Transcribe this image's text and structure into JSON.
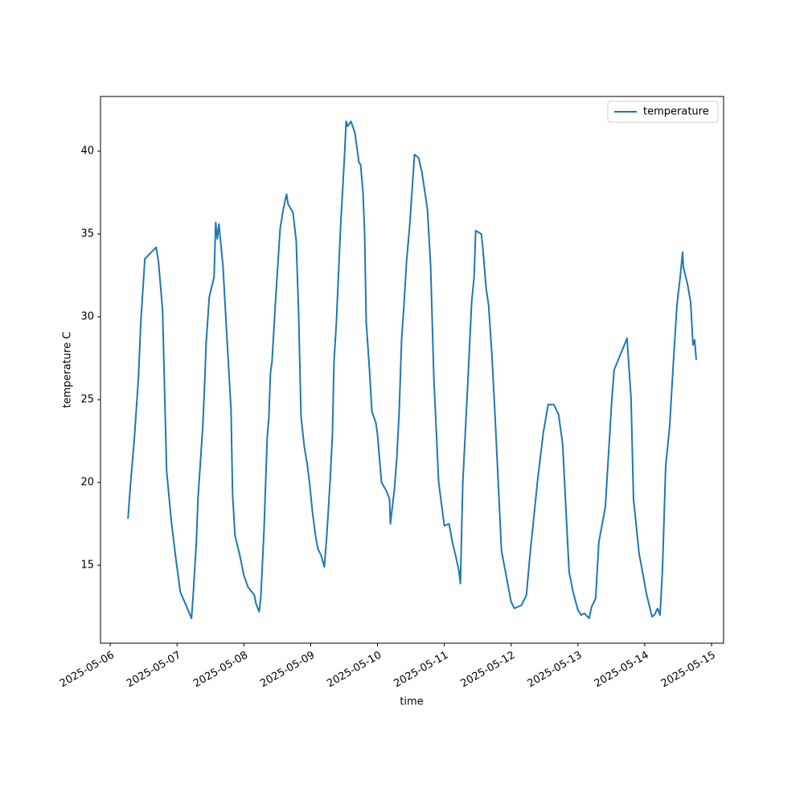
{
  "chart_data": {
    "type": "line",
    "xlabel": "time",
    "ylabel": "temperature C",
    "legend": "upper right",
    "xlim": [
      "2025-05-05T20:30",
      "2025-05-15T04:20"
    ],
    "xticks": [
      "2025-05-06",
      "2025-05-07",
      "2025-05-08",
      "2025-05-09",
      "2025-05-10",
      "2025-05-11",
      "2025-05-12",
      "2025-05-13",
      "2025-05-14",
      "2025-05-15"
    ],
    "ylim": [
      10.3,
      43.3
    ],
    "yticks": [
      15,
      20,
      25,
      30,
      35,
      40
    ],
    "grid": false,
    "x": [
      "2025-05-06T06:22",
      "2025-05-06T07:14",
      "2025-05-06T08:41",
      "2025-05-06T10:07",
      "2025-05-06T10:59",
      "2025-05-06T12:26",
      "2025-05-06T16:29",
      "2025-05-06T17:21",
      "2025-05-06T18:48",
      "2025-05-06T20:15",
      "2025-05-06T21:59",
      "2025-05-06T23:25",
      "2025-05-07T01:09",
      "2025-05-07T03:28",
      "2025-05-07T05:12",
      "2025-05-07T05:47",
      "2025-05-07T06:56",
      "2025-05-07T07:31",
      "2025-05-07T09:15",
      "2025-05-07T10:07",
      "2025-05-07T10:25",
      "2025-05-07T11:34",
      "2025-05-07T13:18",
      "2025-05-07T13:53",
      "2025-05-07T14:28",
      "2025-05-07T15:02",
      "2025-05-07T16:29",
      "2025-05-07T17:56",
      "2025-05-07T19:23",
      "2025-05-07T19:57",
      "2025-05-07T20:49",
      "2025-05-07T22:33",
      "2025-05-08T00:00",
      "2025-05-08T01:27",
      "2025-05-08T03:46",
      "2025-05-08T04:20",
      "2025-05-08T05:30",
      "2025-05-08T06:04",
      "2025-05-08T07:14",
      "2025-05-08T08:23",
      "2025-05-08T08:58",
      "2025-05-08T09:33",
      "2025-05-08T10:07",
      "2025-05-08T11:17",
      "2025-05-08T13:01",
      "2025-05-08T14:10",
      "2025-05-08T15:20",
      "2025-05-08T15:54",
      "2025-05-08T17:38",
      "2025-05-08T18:48",
      "2025-05-08T19:40",
      "2025-05-08T20:32",
      "2025-05-08T21:41",
      "2025-05-08T22:51",
      "2025-05-08T23:43",
      "2025-05-09T00:35",
      "2025-05-09T01:44",
      "2025-05-09T02:36",
      "2025-05-09T03:46",
      "2025-05-09T04:55",
      "2025-05-09T05:47",
      "2025-05-09T06:57",
      "2025-05-09T07:49",
      "2025-05-09T08:23",
      "2025-05-09T09:15",
      "2025-05-09T10:42",
      "2025-05-09T12:09",
      "2025-05-09T12:44",
      "2025-05-09T13:18",
      "2025-05-09T14:28",
      "2025-05-09T15:54",
      "2025-05-09T17:21",
      "2025-05-09T17:56",
      "2025-05-09T18:48",
      "2025-05-09T19:23",
      "2025-05-09T19:57",
      "2025-05-09T21:07",
      "2025-05-09T21:59",
      "2025-05-09T23:26",
      "2025-05-10T00:00",
      "2025-05-10T01:27",
      "2025-05-10T03:11",
      "2025-05-10T04:20",
      "2025-05-10T04:38",
      "2025-05-10T06:05",
      "2025-05-10T06:57",
      "2025-05-10T07:49",
      "2025-05-10T08:41",
      "2025-05-10T09:33",
      "2025-05-10T10:25",
      "2025-05-10T11:34",
      "2025-05-10T13:18",
      "2025-05-10T14:45",
      "2025-05-10T15:54",
      "2025-05-10T17:56",
      "2025-05-10T19:05",
      "2025-05-10T20:15",
      "2025-05-10T21:59",
      "2025-05-11T00:00",
      "2025-05-11T01:44",
      "2025-05-11T02:54",
      "2025-05-11T04:03",
      "2025-05-11T05:13",
      "2025-05-11T05:47",
      "2025-05-11T06:39",
      "2025-05-11T08:23",
      "2025-05-11T09:50",
      "2025-05-11T10:42",
      "2025-05-11T11:17",
      "2025-05-11T13:18",
      "2025-05-11T13:53",
      "2025-05-11T15:02",
      "2025-05-11T15:55",
      "2025-05-11T17:04",
      "2025-05-11T18:13",
      "2025-05-11T20:32",
      "2025-05-11T21:59",
      "2025-05-12T00:00",
      "2025-05-12T01:10",
      "2025-05-12T03:46",
      "2025-05-12T05:30",
      "2025-05-12T06:39",
      "2025-05-12T09:33",
      "2025-05-12T11:34",
      "2025-05-12T13:18",
      "2025-05-12T15:20",
      "2025-05-12T17:04",
      "2025-05-12T18:31",
      "2025-05-12T19:40",
      "2025-05-12T20:50",
      "2025-05-12T22:16",
      "2025-05-13T00:00",
      "2025-05-13T01:10",
      "2025-05-13T02:19",
      "2025-05-13T04:03",
      "2025-05-13T04:55",
      "2025-05-13T06:22",
      "2025-05-13T07:31",
      "2025-05-13T08:24",
      "2025-05-13T09:50",
      "2025-05-13T12:09",
      "2025-05-13T13:01",
      "2025-05-13T17:39",
      "2025-05-13T19:05",
      "2025-05-13T19:58",
      "2025-05-13T21:59",
      "2025-05-13T23:26",
      "2025-05-14T00:35",
      "2025-05-14T01:45",
      "2025-05-14T02:37",
      "2025-05-14T03:29",
      "2025-05-14T04:38",
      "2025-05-14T05:30",
      "2025-05-14T06:22",
      "2025-05-14T07:32",
      "2025-05-14T08:58",
      "2025-05-14T10:08",
      "2025-05-14T11:34",
      "2025-05-14T12:44",
      "2025-05-14T13:36",
      "2025-05-14T13:53",
      "2025-05-14T15:20",
      "2025-05-14T16:29",
      "2025-05-14T17:21",
      "2025-05-14T17:56",
      "2025-05-14T18:31"
    ],
    "series": [
      {
        "name": "temperature",
        "color": "#1f77b4",
        "values": [
          17.8,
          19.8,
          22.7,
          26.3,
          29.7,
          33.5,
          34.2,
          33.3,
          30.4,
          20.7,
          17.6,
          15.6,
          13.4,
          12.5,
          11.8,
          13.2,
          16.4,
          19.0,
          23.4,
          26.8,
          28.3,
          31.2,
          32.4,
          35.7,
          34.7,
          35.6,
          33.1,
          28.7,
          24.4,
          19.3,
          16.8,
          15.6,
          14.4,
          13.7,
          13.2,
          12.7,
          12.2,
          13.0,
          17.1,
          22.7,
          23.9,
          26.6,
          27.3,
          30.7,
          35.3,
          36.5,
          37.4,
          36.8,
          36.3,
          34.6,
          30.2,
          24.0,
          22.2,
          21.0,
          19.8,
          18.3,
          16.8,
          16.0,
          15.6,
          14.9,
          16.8,
          20.0,
          22.9,
          27.3,
          29.7,
          35.3,
          39.7,
          41.8,
          41.5,
          41.8,
          41.1,
          39.3,
          39.2,
          37.5,
          35.0,
          29.7,
          26.8,
          24.3,
          23.6,
          22.9,
          20.0,
          19.5,
          19.0,
          17.5,
          19.6,
          21.5,
          24.4,
          28.7,
          30.8,
          33.3,
          35.5,
          39.8,
          39.6,
          38.8,
          36.5,
          33.1,
          26.3,
          20.0,
          17.4,
          17.5,
          16.4,
          15.6,
          14.7,
          13.9,
          20.0,
          25.8,
          30.9,
          32.4,
          35.2,
          35.0,
          34.1,
          31.7,
          30.7,
          27.8,
          24.1,
          15.9,
          14.6,
          12.8,
          12.4,
          12.6,
          13.2,
          15.4,
          20.2,
          23.0,
          24.7,
          24.7,
          24.1,
          22.3,
          18.5,
          14.6,
          13.4,
          12.3,
          12.0,
          12.1,
          11.8,
          12.5,
          13.0,
          16.4,
          17.2,
          18.5,
          24.9,
          26.8,
          28.7,
          25.1,
          19.0,
          15.7,
          14.4,
          13.3,
          12.5,
          11.9,
          12.0,
          12.4,
          12.0,
          14.7,
          21.0,
          23.4,
          26.8,
          30.7,
          32.4,
          33.9,
          33.0,
          32.0,
          30.9,
          28.3,
          28.6,
          27.4
        ]
      }
    ]
  }
}
